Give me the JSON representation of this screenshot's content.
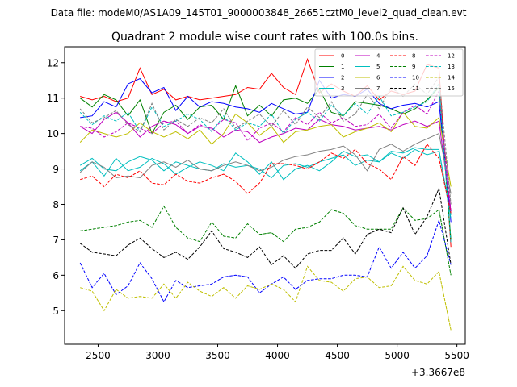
{
  "chart_data": {
    "type": "line",
    "suptitle": "Data file: modeM0/AS1A09_145T01_9000003848_26651cztM0_level2_quad_clean.evt",
    "title": "Quadrant 2 module wise count rates with 100.0s bins.",
    "xlabel": "",
    "ylabel": "",
    "x_offset_label": "+3.3667e8",
    "xlim": [
      2220,
      5570
    ],
    "ylim": [
      4.05,
      12.45
    ],
    "xticks": [
      2500,
      3000,
      3500,
      4000,
      4500,
      5000,
      5500
    ],
    "xtick_labels": [
      "2500",
      "3000",
      "3500",
      "4000",
      "4500",
      "5000",
      "5500"
    ],
    "yticks": [
      5,
      6,
      7,
      8,
      9,
      10,
      11,
      12
    ],
    "ytick_labels": [
      "5",
      "6",
      "7",
      "8",
      "9",
      "10",
      "11",
      "12"
    ],
    "grid": false,
    "legend_position": "top-right",
    "x": [
      2350,
      2450,
      2550,
      2650,
      2750,
      2850,
      2950,
      3050,
      3150,
      3250,
      3350,
      3450,
      3550,
      3650,
      3750,
      3850,
      3950,
      4050,
      4150,
      4250,
      4350,
      4450,
      4550,
      4650,
      4750,
      4850,
      4950,
      5050,
      5150,
      5250,
      5350,
      5450
    ],
    "series": [
      {
        "name": "0",
        "color": "#ff0000",
        "dash": "solid",
        "values": [
          11.05,
          10.95,
          11.05,
          10.9,
          11.0,
          11.85,
          11.1,
          11.25,
          10.95,
          11.05,
          10.95,
          11.0,
          11.05,
          11.1,
          11.3,
          11.25,
          11.7,
          11.3,
          11.1,
          12.1,
          11.15,
          11.4,
          11.2,
          11.05,
          11.35,
          10.95,
          11.2,
          11.1,
          11.2,
          11.95,
          11.85,
          6.8
        ]
      },
      {
        "name": "1",
        "color": "#008000",
        "dash": "solid",
        "values": [
          11.0,
          10.75,
          11.1,
          10.95,
          10.5,
          10.95,
          10.0,
          10.6,
          10.8,
          10.4,
          10.75,
          10.8,
          10.4,
          11.35,
          10.5,
          10.8,
          10.5,
          10.95,
          11.0,
          10.85,
          11.25,
          10.6,
          10.5,
          10.9,
          10.85,
          10.8,
          10.7,
          10.55,
          10.7,
          10.95,
          11.3,
          7.0
        ]
      },
      {
        "name": "2",
        "color": "#0000ff",
        "dash": "solid",
        "values": [
          10.45,
          10.5,
          10.9,
          10.75,
          11.4,
          11.55,
          11.15,
          11.3,
          10.65,
          11.05,
          10.75,
          10.9,
          10.85,
          10.75,
          10.7,
          10.6,
          10.85,
          10.7,
          10.55,
          10.6,
          11.5,
          11.0,
          11.1,
          11.05,
          11.25,
          10.85,
          10.7,
          10.8,
          10.85,
          10.75,
          10.9,
          7.5
        ]
      },
      {
        "name": "3",
        "color": "#00bfbf",
        "dash": "solid",
        "values": [
          9.1,
          9.3,
          9.0,
          8.95,
          9.2,
          9.35,
          9.25,
          8.95,
          9.2,
          9.1,
          9.0,
          8.95,
          9.15,
          9.05,
          9.1,
          9.0,
          8.75,
          9.1,
          9.15,
          9.05,
          9.2,
          9.3,
          9.4,
          9.1,
          9.25,
          9.2,
          9.5,
          9.45,
          9.6,
          9.55,
          9.55,
          7.6
        ]
      },
      {
        "name": "4",
        "color": "#bf00bf",
        "dash": "solid",
        "values": [
          10.2,
          10.0,
          10.4,
          10.6,
          10.3,
          9.9,
          10.2,
          10.35,
          10.25,
          10.0,
          10.2,
          10.15,
          9.9,
          10.1,
          10.05,
          9.75,
          9.9,
          10.0,
          10.15,
          10.1,
          10.4,
          10.25,
          10.2,
          10.1,
          10.15,
          10.2,
          10.1,
          10.25,
          10.35,
          10.2,
          10.35,
          7.8
        ]
      },
      {
        "name": "5",
        "color": "#00bfbf",
        "dash": "solid",
        "values": [
          8.95,
          9.2,
          8.8,
          9.3,
          8.95,
          9.05,
          9.3,
          9.15,
          8.85,
          9.05,
          9.2,
          9.1,
          8.95,
          9.45,
          9.2,
          8.85,
          9.2,
          8.7,
          9.0,
          9.1,
          8.95,
          9.2,
          9.5,
          9.35,
          9.4,
          9.2,
          9.45,
          9.3,
          9.55,
          9.4,
          9.5,
          7.7
        ]
      },
      {
        "name": "6",
        "color": "#bfbf00",
        "dash": "solid",
        "values": [
          9.75,
          10.1,
          10.0,
          9.9,
          10.0,
          10.3,
          10.05,
          9.9,
          10.05,
          9.85,
          10.1,
          9.7,
          10.0,
          10.55,
          10.3,
          9.95,
          10.2,
          9.75,
          10.05,
          10.1,
          10.2,
          10.25,
          9.9,
          10.05,
          10.15,
          10.3,
          10.05,
          10.6,
          10.2,
          10.15,
          10.45,
          8.5
        ]
      },
      {
        "name": "7",
        "color": "#808080",
        "dash": "solid",
        "values": [
          8.9,
          9.2,
          9.05,
          8.75,
          8.8,
          8.75,
          9.1,
          9.2,
          9.05,
          9.25,
          9.0,
          8.95,
          9.1,
          9.2,
          9.1,
          8.95,
          9.05,
          9.25,
          9.35,
          9.4,
          9.5,
          9.55,
          9.65,
          9.4,
          8.95,
          9.55,
          9.7,
          9.5,
          9.7,
          9.85,
          10.0,
          8.3
        ]
      },
      {
        "name": "8",
        "color": "#ff0000",
        "dash": "dashed",
        "values": [
          8.7,
          8.8,
          8.5,
          8.85,
          8.75,
          8.95,
          8.6,
          8.55,
          8.85,
          8.65,
          8.6,
          8.75,
          8.85,
          8.65,
          8.3,
          8.6,
          9.15,
          9.15,
          9.1,
          9.0,
          9.2,
          9.45,
          9.3,
          9.55,
          9.15,
          9.0,
          8.7,
          9.35,
          9.1,
          9.7,
          9.3,
          7.75
        ]
      },
      {
        "name": "9",
        "color": "#008000",
        "dash": "dashed",
        "values": [
          7.25,
          7.3,
          7.35,
          7.4,
          7.5,
          7.55,
          7.35,
          7.95,
          7.35,
          7.05,
          6.95,
          7.5,
          7.1,
          7.05,
          7.45,
          7.15,
          7.2,
          6.95,
          7.3,
          7.35,
          7.5,
          7.85,
          7.75,
          7.4,
          7.3,
          7.3,
          7.3,
          7.9,
          7.55,
          7.6,
          7.85,
          6.0
        ]
      },
      {
        "name": "10",
        "color": "#0000ff",
        "dash": "dashed",
        "values": [
          6.35,
          5.65,
          6.05,
          5.45,
          5.7,
          6.35,
          5.9,
          5.25,
          5.85,
          5.65,
          5.7,
          5.75,
          5.95,
          6.0,
          5.95,
          5.5,
          5.75,
          5.95,
          5.6,
          5.85,
          5.9,
          5.9,
          6.0,
          6.0,
          5.95,
          6.8,
          6.2,
          6.65,
          6.2,
          6.55,
          7.55,
          6.3
        ]
      },
      {
        "name": "11",
        "color": "#000000",
        "dash": "dashed",
        "values": [
          6.9,
          6.65,
          6.6,
          6.55,
          6.85,
          7.05,
          6.75,
          6.5,
          6.65,
          6.45,
          6.8,
          7.25,
          6.75,
          6.65,
          6.5,
          6.8,
          6.3,
          6.55,
          6.2,
          6.6,
          6.7,
          6.7,
          7.05,
          6.6,
          7.15,
          7.3,
          7.2,
          7.9,
          7.15,
          7.65,
          8.45,
          6.3
        ]
      },
      {
        "name": "12",
        "color": "#bf00bf",
        "dash": "dashed",
        "values": [
          10.2,
          10.15,
          9.9,
          10.05,
          10.3,
          10.15,
          10.0,
          10.3,
          10.35,
          10.0,
          10.25,
          10.1,
          10.4,
          10.3,
          9.8,
          10.15,
          10.3,
          10.05,
          10.45,
          10.25,
          10.6,
          10.3,
          10.45,
          10.2,
          10.25,
          10.55,
          10.15,
          10.6,
          10.8,
          10.55,
          11.2,
          7.8
        ]
      },
      {
        "name": "13",
        "color": "#00bfbf",
        "dash": "dashed",
        "values": [
          10.6,
          10.25,
          10.5,
          10.35,
          10.6,
          10.05,
          10.75,
          10.2,
          10.35,
          10.55,
          10.4,
          10.05,
          10.5,
          10.1,
          10.3,
          10.2,
          10.55,
          10.0,
          10.4,
          10.6,
          10.35,
          10.8,
          10.5,
          10.85,
          10.55,
          11.05,
          10.5,
          10.6,
          10.75,
          10.9,
          11.4,
          6.9
        ]
      },
      {
        "name": "14",
        "color": "#bfbf00",
        "dash": "dashed",
        "values": [
          5.65,
          5.55,
          5.0,
          5.6,
          5.35,
          5.4,
          5.35,
          5.75,
          5.35,
          5.8,
          5.55,
          5.4,
          5.65,
          5.35,
          5.7,
          5.6,
          5.75,
          5.6,
          5.25,
          6.25,
          5.85,
          5.8,
          5.55,
          5.9,
          5.95,
          5.65,
          5.7,
          6.25,
          5.85,
          5.75,
          6.1,
          4.45
        ]
      },
      {
        "name": "15",
        "color": "#808080",
        "dash": "dashed",
        "values": [
          10.7,
          10.3,
          10.45,
          10.65,
          10.25,
          10.05,
          10.85,
          10.1,
          10.4,
          10.2,
          10.45,
          10.3,
          10.7,
          10.15,
          10.35,
          10.55,
          10.2,
          10.65,
          10.25,
          10.75,
          10.45,
          10.9,
          10.35,
          10.55,
          11.1,
          10.7,
          11.3,
          11.05,
          11.4,
          11.1,
          11.6,
          8.0
        ]
      }
    ]
  }
}
